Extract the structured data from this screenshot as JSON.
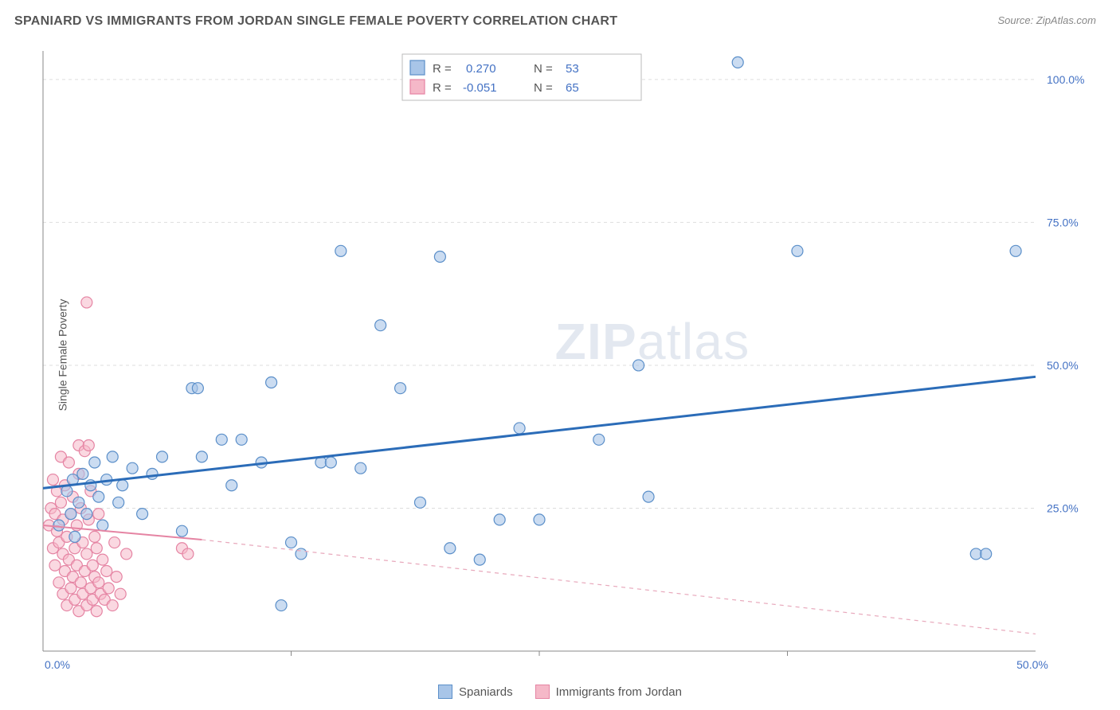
{
  "header": {
    "title": "SPANIARD VS IMMIGRANTS FROM JORDAN SINGLE FEMALE POVERTY CORRELATION CHART",
    "source_prefix": "Source: ",
    "source_name": "ZipAtlas.com"
  },
  "ylabel": "Single Female Poverty",
  "watermark": {
    "zip": "ZIP",
    "atlas": "atlas"
  },
  "chart": {
    "type": "scatter",
    "background": "#ffffff",
    "grid_color": "#dddddd",
    "axis_color": "#888888",
    "marker_radius": 7,
    "xlim": [
      0,
      50
    ],
    "ylim": [
      0,
      105
    ],
    "y_ticks": [
      25,
      50,
      75,
      100
    ],
    "y_tick_labels": [
      "25.0%",
      "50.0%",
      "75.0%",
      "100.0%"
    ],
    "x_ticks": [
      0,
      50
    ],
    "x_tick_labels": [
      "0.0%",
      "50.0%"
    ],
    "x_minor_ticks": [
      12.5,
      25,
      37.5
    ],
    "series": {
      "blue": {
        "label": "Spaniards",
        "fill": "#a8c5e8",
        "stroke": "#5b8fc9",
        "R": "0.270",
        "N": "53",
        "trend": {
          "x1": 0,
          "y1": 28.5,
          "x2": 50,
          "y2": 48,
          "color": "#2b6cb8",
          "width": 3
        },
        "points": [
          [
            0.8,
            22
          ],
          [
            1.2,
            28
          ],
          [
            1.4,
            24
          ],
          [
            1.5,
            30
          ],
          [
            1.6,
            20
          ],
          [
            1.8,
            26
          ],
          [
            2,
            31
          ],
          [
            2.2,
            24
          ],
          [
            2.4,
            29
          ],
          [
            2.6,
            33
          ],
          [
            2.8,
            27
          ],
          [
            3,
            22
          ],
          [
            3.2,
            30
          ],
          [
            3.5,
            34
          ],
          [
            3.8,
            26
          ],
          [
            4,
            29
          ],
          [
            4.5,
            32
          ],
          [
            5,
            24
          ],
          [
            5.5,
            31
          ],
          [
            6,
            34
          ],
          [
            7,
            21
          ],
          [
            7.5,
            46
          ],
          [
            7.8,
            46
          ],
          [
            8,
            34
          ],
          [
            9,
            37
          ],
          [
            9.5,
            29
          ],
          [
            10,
            37
          ],
          [
            11,
            33
          ],
          [
            11.5,
            47
          ],
          [
            12,
            8
          ],
          [
            12.5,
            19
          ],
          [
            13,
            17
          ],
          [
            14,
            33
          ],
          [
            14.5,
            33
          ],
          [
            15,
            70
          ],
          [
            16,
            32
          ],
          [
            17,
            57
          ],
          [
            18,
            46
          ],
          [
            19,
            26
          ],
          [
            20,
            69
          ],
          [
            20.5,
            18
          ],
          [
            22,
            16
          ],
          [
            23,
            23
          ],
          [
            24,
            39
          ],
          [
            25,
            23
          ],
          [
            28,
            37
          ],
          [
            30,
            50
          ],
          [
            30.5,
            27
          ],
          [
            35,
            103
          ],
          [
            38,
            70
          ],
          [
            47,
            17
          ],
          [
            47.5,
            17
          ],
          [
            49,
            70
          ]
        ]
      },
      "pink": {
        "label": "Immigrants from Jordan",
        "fill": "#f5b8c8",
        "stroke": "#e584a3",
        "R": "-0.051",
        "N": "65",
        "trend_solid": {
          "x1": 0,
          "y1": 22,
          "x2": 8,
          "y2": 19.5,
          "color": "#e584a3",
          "width": 2
        },
        "trend_dash": {
          "x1": 8,
          "y1": 19.5,
          "x2": 50,
          "y2": 3,
          "color": "#e8a9bc",
          "width": 1.2
        },
        "points": [
          [
            0.3,
            22
          ],
          [
            0.4,
            25
          ],
          [
            0.5,
            18
          ],
          [
            0.5,
            30
          ],
          [
            0.6,
            15
          ],
          [
            0.6,
            24
          ],
          [
            0.7,
            21
          ],
          [
            0.7,
            28
          ],
          [
            0.8,
            12
          ],
          [
            0.8,
            19
          ],
          [
            0.9,
            26
          ],
          [
            0.9,
            34
          ],
          [
            1,
            10
          ],
          [
            1,
            17
          ],
          [
            1,
            23
          ],
          [
            1.1,
            14
          ],
          [
            1.1,
            29
          ],
          [
            1.2,
            8
          ],
          [
            1.2,
            20
          ],
          [
            1.3,
            16
          ],
          [
            1.3,
            33
          ],
          [
            1.4,
            11
          ],
          [
            1.4,
            24
          ],
          [
            1.5,
            13
          ],
          [
            1.5,
            27
          ],
          [
            1.6,
            9
          ],
          [
            1.6,
            18
          ],
          [
            1.7,
            15
          ],
          [
            1.7,
            22
          ],
          [
            1.8,
            7
          ],
          [
            1.8,
            31
          ],
          [
            1.8,
            36
          ],
          [
            1.9,
            12
          ],
          [
            1.9,
            25
          ],
          [
            2,
            10
          ],
          [
            2,
            19
          ],
          [
            2.1,
            14
          ],
          [
            2.1,
            35
          ],
          [
            2.2,
            8
          ],
          [
            2.2,
            17
          ],
          [
            2.3,
            23
          ],
          [
            2.3,
            36
          ],
          [
            2.4,
            11
          ],
          [
            2.4,
            28
          ],
          [
            2.5,
            9
          ],
          [
            2.5,
            15
          ],
          [
            2.6,
            20
          ],
          [
            2.6,
            13
          ],
          [
            2.7,
            7
          ],
          [
            2.7,
            18
          ],
          [
            2.8,
            12
          ],
          [
            2.8,
            24
          ],
          [
            2.9,
            10
          ],
          [
            3,
            16
          ],
          [
            3.1,
            9
          ],
          [
            3.2,
            14
          ],
          [
            3.3,
            11
          ],
          [
            3.5,
            8
          ],
          [
            3.6,
            19
          ],
          [
            3.7,
            13
          ],
          [
            3.9,
            10
          ],
          [
            4.2,
            17
          ],
          [
            2.2,
            61
          ],
          [
            7,
            18
          ],
          [
            7.3,
            17
          ]
        ]
      }
    }
  },
  "legend": {
    "blue_label": "Spaniards",
    "pink_label": "Immigrants from Jordan"
  },
  "stats_labels": {
    "R": "R =",
    "N": "N ="
  }
}
